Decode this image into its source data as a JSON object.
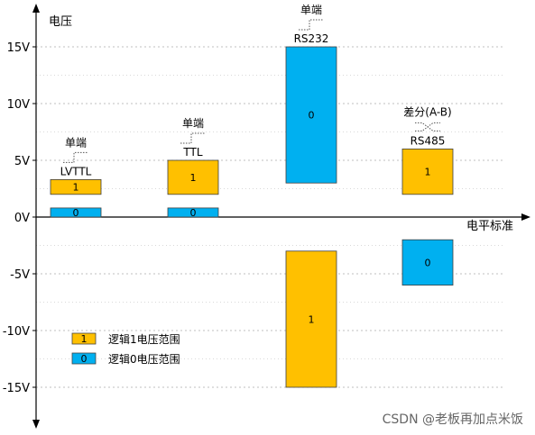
{
  "chart_data": {
    "type": "bar",
    "title": "",
    "ylabel": "电压",
    "xlabel": "电平标准",
    "ylim": [
      -15,
      15
    ],
    "yticks": [
      {
        "value": 15,
        "label": "15V"
      },
      {
        "value": 10,
        "label": "10V"
      },
      {
        "value": 5,
        "label": "5V"
      },
      {
        "value": 0,
        "label": "0V"
      },
      {
        "value": -5,
        "label": "-5V"
      },
      {
        "value": -10,
        "label": "-10V"
      },
      {
        "value": -15,
        "label": "-15V"
      }
    ],
    "grid": true,
    "legend_position": "bottom-left",
    "series": [
      {
        "name": "逻辑1电压范围",
        "key": "1",
        "color": "#FFC000"
      },
      {
        "name": "逻辑0电压范围",
        "key": "0",
        "color": "#00B0F0"
      }
    ],
    "groups": [
      {
        "name": "LVTTL",
        "type_label": "单端",
        "symbol": "step",
        "bars": [
          {
            "series": "1",
            "low": 2.0,
            "high": 3.3
          },
          {
            "series": "0",
            "low": 0.0,
            "high": 0.8
          }
        ]
      },
      {
        "name": "TTL",
        "type_label": "单端",
        "symbol": "step",
        "bars": [
          {
            "series": "1",
            "low": 2.0,
            "high": 5.0
          },
          {
            "series": "0",
            "low": 0.0,
            "high": 0.8
          }
        ]
      },
      {
        "name": "RS232",
        "type_label": "单端",
        "symbol": "step",
        "bars": [
          {
            "series": "0",
            "low": 3.0,
            "high": 15.0
          },
          {
            "series": "1",
            "low": -15.0,
            "high": -3.0
          }
        ]
      },
      {
        "name": "RS485",
        "type_label": "差分(A-B)",
        "symbol": "diff",
        "bars": [
          {
            "series": "1",
            "low": 2.0,
            "high": 6.0
          },
          {
            "series": "0",
            "low": -6.0,
            "high": -2.0
          }
        ]
      }
    ]
  },
  "watermark": "CSDN @老板再加点米饭"
}
